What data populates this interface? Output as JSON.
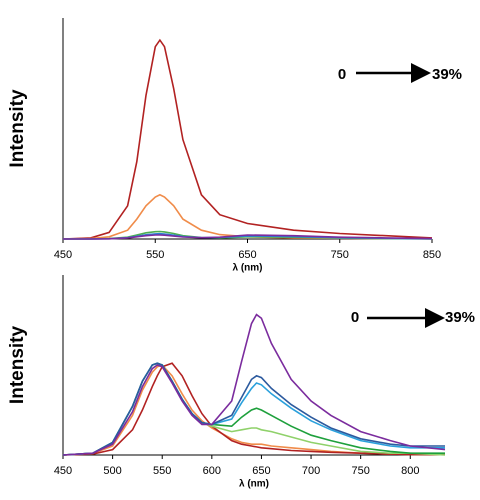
{
  "chart_data": [
    {
      "type": "line",
      "x_label": "λ (nm)",
      "y_label": "Intensity",
      "annotation_start": "0",
      "annotation_end": "39%",
      "x": [
        450,
        480,
        500,
        520,
        530,
        540,
        550,
        555,
        560,
        570,
        580,
        600,
        620,
        650,
        700,
        750,
        800,
        850
      ],
      "xlim": [
        450,
        850
      ],
      "xticks": [
        450,
        550,
        650,
        750,
        850
      ],
      "ylim": [
        0,
        100
      ],
      "series": [
        {
          "color": "#b22222",
          "values": [
            0,
            0.5,
            3,
            15,
            35,
            65,
            87,
            90,
            87,
            68,
            45,
            20,
            11,
            7,
            4,
            2.5,
            1.5,
            0.5
          ]
        },
        {
          "color": "#f08c4a",
          "values": [
            0,
            0.2,
            1,
            4,
            9,
            15,
            19,
            20,
            19,
            15,
            9,
            4,
            2,
            1,
            0.5,
            0.3,
            0.2,
            0.1
          ]
        },
        {
          "color": "#4caf50",
          "values": [
            0,
            0,
            0.2,
            0.8,
            1.8,
            2.8,
            3.3,
            3.4,
            3.2,
            2.5,
            1.5,
            0.7,
            0.5,
            1,
            0.8,
            0.4,
            0.2,
            0
          ]
        },
        {
          "color": "#2a7fd4",
          "values": [
            0,
            0,
            0.1,
            0.6,
            1.2,
            1.9,
            2.3,
            2.4,
            2.2,
            1.7,
            1.1,
            0.6,
            0.7,
            1.4,
            1.1,
            0.6,
            0.3,
            0.1
          ]
        },
        {
          "color": "#7b2c9e",
          "values": [
            0,
            0,
            0.1,
            0.5,
            1,
            1.5,
            1.8,
            1.8,
            1.7,
            1.3,
            0.9,
            0.6,
            0.8,
            1.8,
            1.5,
            0.8,
            0.5,
            0.2
          ]
        }
      ]
    },
    {
      "type": "line",
      "x_label": "λ (nm)",
      "y_label": "Intensity",
      "annotation_start": "0",
      "annotation_end": "39%",
      "x": [
        450,
        480,
        500,
        520,
        530,
        540,
        545,
        550,
        560,
        570,
        580,
        590,
        600,
        620,
        630,
        640,
        645,
        650,
        660,
        680,
        700,
        720,
        750,
        780,
        800,
        835
      ],
      "xlim": [
        450,
        835
      ],
      "xticks": [
        450,
        500,
        550,
        600,
        650,
        700,
        750,
        800
      ],
      "ylim": [
        0,
        100
      ],
      "series": [
        {
          "color": "#f08c4a",
          "values": [
            0,
            0.8,
            5,
            22,
            36,
            46,
            49,
            50,
            44,
            34,
            25,
            19,
            15,
            9,
            7,
            6,
            6,
            6,
            5,
            4,
            3,
            2,
            1,
            0.5,
            0.3,
            0.2
          ]
        },
        {
          "color": "#b22222",
          "values": [
            0,
            0.5,
            3,
            14,
            25,
            38,
            44,
            49,
            51,
            44,
            33,
            23,
            16,
            8,
            6,
            5,
            4.5,
            4,
            3.5,
            2.5,
            2,
            1.5,
            1,
            0.5,
            0.3,
            0.2
          ]
        },
        {
          "color": "#8fd16a",
          "values": [
            0,
            1,
            7,
            27,
            41,
            50,
            51,
            50,
            41,
            31,
            23,
            18,
            16,
            13,
            14,
            15,
            15,
            14,
            13,
            10,
            7,
            5,
            2,
            1,
            1,
            0
          ]
        },
        {
          "color": "#1ea03c",
          "values": [
            0,
            1,
            7,
            27,
            41,
            50,
            51,
            50,
            41,
            31,
            23,
            18,
            17,
            16,
            21,
            25,
            26,
            25,
            22,
            16,
            11,
            8,
            4,
            2,
            1,
            1
          ]
        },
        {
          "color": "#2aa0dc",
          "values": [
            0,
            1,
            7,
            27,
            41,
            50,
            51,
            50,
            41,
            31,
            23,
            18,
            17,
            20,
            29,
            37,
            40,
            39,
            34,
            26,
            19,
            14,
            8,
            5,
            4,
            4
          ]
        },
        {
          "color": "#2c5a9e",
          "values": [
            0,
            1,
            7,
            27,
            41,
            50,
            51,
            50,
            41,
            31,
            23,
            18,
            17,
            22,
            32,
            42,
            44,
            43,
            37,
            28,
            21,
            15,
            9,
            6,
            5,
            5
          ]
        },
        {
          "color": "#7b2c9e",
          "values": [
            0,
            1,
            6,
            24,
            38,
            48,
            50,
            49,
            40,
            30,
            22,
            17,
            17,
            30,
            52,
            73,
            78,
            76,
            62,
            42,
            30,
            22,
            13,
            8,
            5,
            3
          ]
        }
      ]
    }
  ]
}
